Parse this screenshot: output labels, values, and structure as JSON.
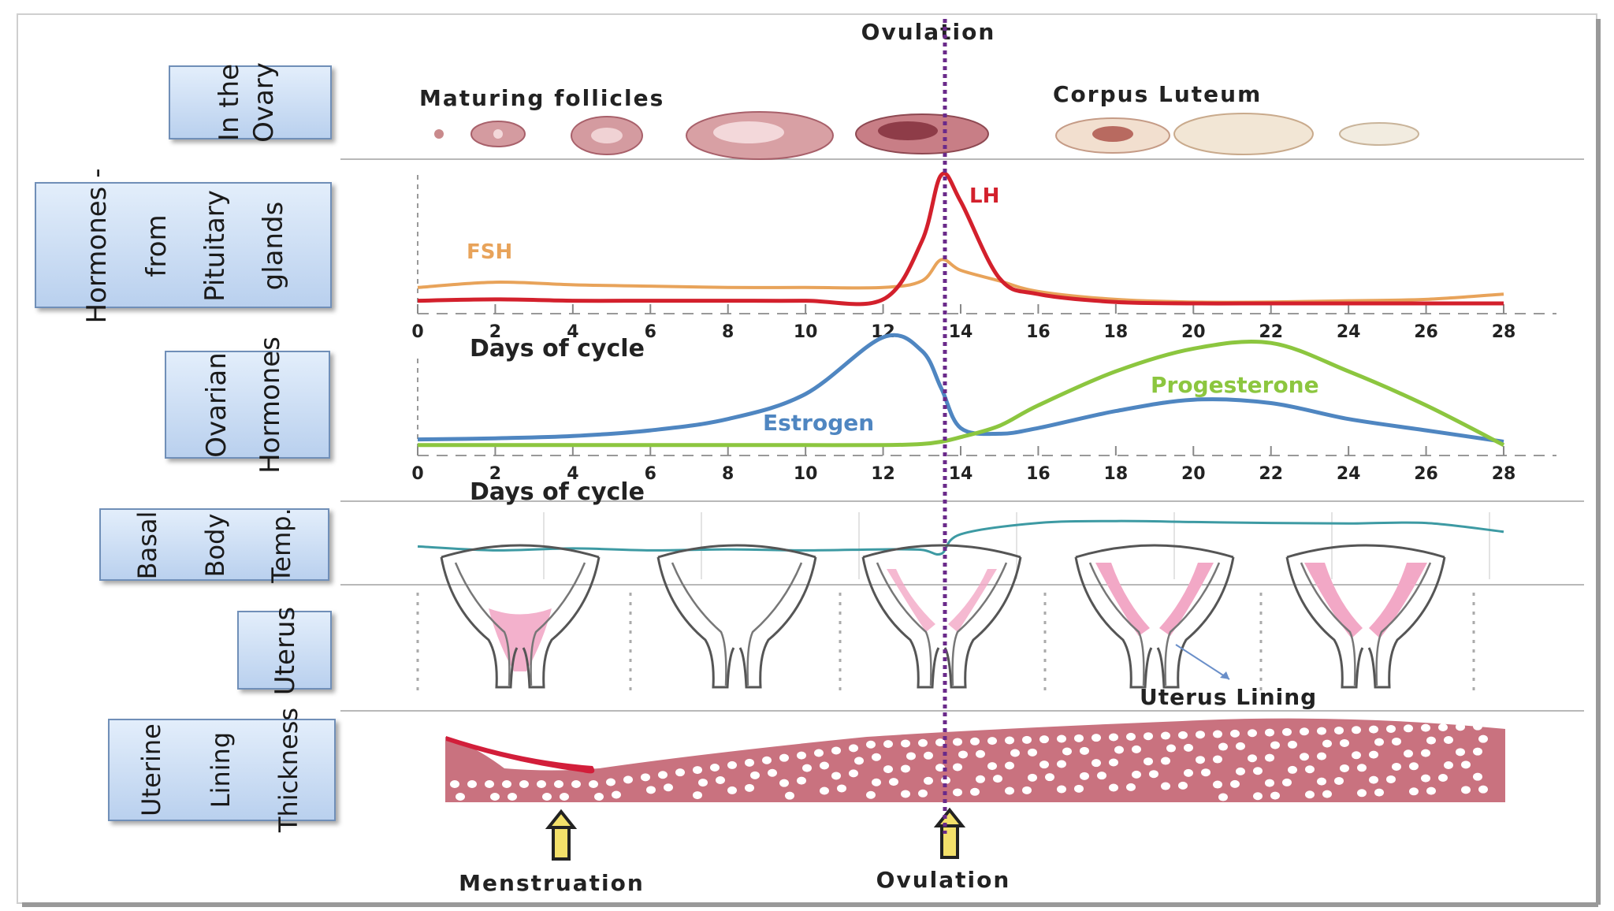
{
  "title_top": "Ovulation",
  "title_bottom": "Ovulation",
  "menstruation_label": "Menstruation",
  "rows": {
    "ovary": {
      "label_lines": [
        "In the",
        "Ovary"
      ]
    },
    "pituitary": {
      "label_lines": [
        "Hormones -",
        "from",
        "Pituitary",
        "glands"
      ]
    },
    "ovarian": {
      "label_lines": [
        "Ovarian",
        "Hormones"
      ]
    },
    "bbt": {
      "label_lines": [
        "Basal",
        "Body",
        "Temp."
      ]
    },
    "uterus": {
      "label_lines": [
        "Uterus"
      ]
    },
    "lining": {
      "label_lines": [
        "Uterine",
        "Lining",
        "Thickness"
      ]
    }
  },
  "ovary_labels": {
    "left": "Maturing follicles",
    "right": "Corpus Luteum"
  },
  "uterus_lining_label": "Uterus Lining",
  "axis": {
    "title": "Days of cycle",
    "ticks": [
      "0",
      "2",
      "4",
      "6",
      "8",
      "10",
      "12",
      "14",
      "16",
      "18",
      "20",
      "22",
      "24",
      "26",
      "28"
    ]
  },
  "colors": {
    "fsh": "#e8a35a",
    "lh": "#d3202c",
    "estrogen": "#4f86c1",
    "progesterone": "#8cc63f",
    "bbt": "#3d9aa3",
    "ovulation_line": "#6a2a8a",
    "label_box": "#cfe0f4",
    "label_border": "#6f8fb8",
    "lining": "#c9727f",
    "uterus_pink": "#f2a8c6"
  },
  "chart_data": [
    {
      "type": "line",
      "x": [
        0,
        2,
        4,
        6,
        8,
        10,
        12,
        13,
        13.5,
        14,
        15,
        16,
        18,
        20,
        22,
        24,
        26,
        28
      ],
      "series": [
        {
          "name": "FSH",
          "values": [
            15,
            19,
            17,
            16,
            15,
            15,
            15,
            20,
            36,
            28,
            20,
            12,
            6,
            4,
            4,
            5,
            6,
            10
          ]
        },
        {
          "name": "LH",
          "values": [
            5,
            6,
            5,
            5,
            5,
            5,
            6,
            50,
            100,
            80,
            22,
            10,
            4,
            3,
            3,
            3,
            3,
            3
          ]
        }
      ],
      "xlabel": "Days of cycle",
      "xlim": [
        0,
        28
      ],
      "ylim": [
        0,
        100
      ]
    },
    {
      "type": "line",
      "x": [
        0,
        2,
        4,
        6,
        8,
        10,
        12,
        13,
        13.5,
        14,
        15,
        16,
        18,
        20,
        22,
        24,
        26,
        28
      ],
      "series": [
        {
          "name": "Estrogen",
          "values": [
            10,
            11,
            13,
            18,
            28,
            50,
            100,
            88,
            55,
            20,
            15,
            20,
            35,
            45,
            42,
            28,
            18,
            8
          ]
        },
        {
          "name": "Progesterone",
          "values": [
            5,
            5,
            5,
            5,
            5,
            5,
            5,
            6,
            8,
            12,
            22,
            40,
            70,
            90,
            95,
            70,
            40,
            5
          ]
        }
      ],
      "xlabel": "Days of cycle",
      "xlim": [
        0,
        28
      ],
      "ylim": [
        0,
        100
      ]
    },
    {
      "type": "line",
      "x": [
        0,
        2,
        4,
        6,
        8,
        10,
        12,
        13,
        13.5,
        14,
        16,
        18,
        20,
        22,
        24,
        26,
        28
      ],
      "series": [
        {
          "name": "",
          "values": [
            30,
            22,
            26,
            22,
            24,
            22,
            24,
            23,
            15,
            55,
            78,
            82,
            80,
            78,
            77,
            78,
            60
          ]
        }
      ],
      "xlim": [
        0,
        28
      ],
      "ylim": [
        0,
        100
      ]
    }
  ]
}
